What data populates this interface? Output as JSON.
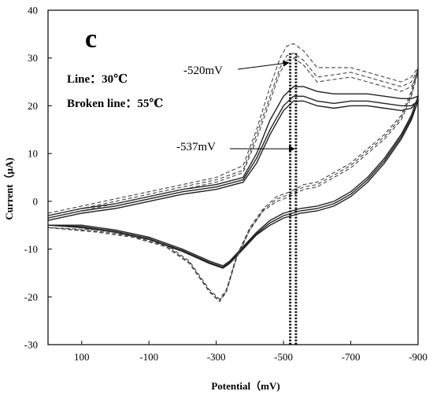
{
  "chart_data": {
    "type": "line",
    "panel_label": "c",
    "xlabel": "Potential（mV)",
    "ylabel": "Current（μA)",
    "xlim": [
      200,
      -900
    ],
    "ylim": [
      -30,
      40
    ],
    "x_ticks": [
      100,
      -100,
      -300,
      -500,
      -700,
      -900
    ],
    "x_tick_labels": [
      "100",
      "-100",
      "-300",
      "-500",
      "-700",
      "-900"
    ],
    "y_ticks": [
      -30,
      -20,
      -10,
      0,
      10,
      20,
      30,
      40
    ],
    "y_tick_labels": [
      "-30",
      "-20",
      "-10",
      "0",
      "10",
      "20",
      "30",
      "40"
    ],
    "grid": false,
    "legend": [
      {
        "text": "Line：30℃",
        "style": "solid"
      },
      {
        "text": "Broken line：55℃",
        "style": "dashed"
      }
    ],
    "annotations": [
      {
        "text": "-520mV",
        "x": -520,
        "y": 29
      },
      {
        "text": "-537mV",
        "x": -537,
        "y": 11
      }
    ],
    "vlines": [
      {
        "x": -520,
        "style": "dotted"
      },
      {
        "x": -537,
        "style": "dotted"
      }
    ],
    "series": [
      {
        "style": "solid",
        "forward": [
          [
            200,
            -4
          ],
          [
            100,
            -2.5
          ],
          [
            0,
            -1.5
          ],
          [
            -100,
            0
          ],
          [
            -200,
            1.5
          ],
          [
            -300,
            2.5
          ],
          [
            -380,
            4
          ],
          [
            -420,
            8
          ],
          [
            -460,
            14
          ],
          [
            -500,
            19
          ],
          [
            -530,
            21
          ],
          [
            -560,
            21
          ],
          [
            -600,
            20
          ],
          [
            -650,
            19.5
          ],
          [
            -700,
            20
          ],
          [
            -750,
            20
          ],
          [
            -800,
            19.5
          ],
          [
            -850,
            19
          ],
          [
            -880,
            19.5
          ],
          [
            -900,
            21
          ]
        ],
        "reverse": [
          [
            -900,
            21
          ],
          [
            -880,
            17
          ],
          [
            -850,
            13
          ],
          [
            -800,
            8
          ],
          [
            -750,
            4
          ],
          [
            -700,
            1
          ],
          [
            -650,
            -1
          ],
          [
            -600,
            -2
          ],
          [
            -550,
            -2.5
          ],
          [
            -500,
            -3.5
          ],
          [
            -460,
            -5
          ],
          [
            -420,
            -7
          ],
          [
            -380,
            -10
          ],
          [
            -340,
            -13
          ],
          [
            -320,
            -14
          ],
          [
            -280,
            -13
          ],
          [
            -200,
            -10.5
          ],
          [
            -100,
            -8
          ],
          [
            0,
            -6.5
          ],
          [
            100,
            -5.5
          ],
          [
            200,
            -5
          ]
        ]
      },
      {
        "style": "solid",
        "forward": [
          [
            200,
            -3.5
          ],
          [
            100,
            -2
          ],
          [
            0,
            -1
          ],
          [
            -100,
            0.5
          ],
          [
            -200,
            2
          ],
          [
            -300,
            3
          ],
          [
            -380,
            4.5
          ],
          [
            -420,
            9
          ],
          [
            -460,
            15
          ],
          [
            -500,
            20
          ],
          [
            -530,
            22
          ],
          [
            -560,
            22
          ],
          [
            -600,
            21
          ],
          [
            -650,
            20.5
          ],
          [
            -700,
            21
          ],
          [
            -750,
            21
          ],
          [
            -800,
            20.5
          ],
          [
            -850,
            20
          ],
          [
            -880,
            20
          ],
          [
            -900,
            21
          ]
        ],
        "reverse": [
          [
            -900,
            21
          ],
          [
            -880,
            17.5
          ],
          [
            -850,
            13.5
          ],
          [
            -800,
            8.5
          ],
          [
            -750,
            4.5
          ],
          [
            -700,
            1.5
          ],
          [
            -650,
            -0.5
          ],
          [
            -600,
            -1.5
          ],
          [
            -550,
            -2
          ],
          [
            -500,
            -3
          ],
          [
            -460,
            -4.5
          ],
          [
            -420,
            -6.8
          ],
          [
            -380,
            -9.8
          ],
          [
            -340,
            -12.8
          ],
          [
            -320,
            -13.8
          ],
          [
            -280,
            -12.8
          ],
          [
            -200,
            -10.3
          ],
          [
            -100,
            -7.8
          ],
          [
            0,
            -6.3
          ],
          [
            100,
            -5.3
          ],
          [
            200,
            -5
          ]
        ]
      },
      {
        "style": "solid",
        "forward": [
          [
            200,
            -3
          ],
          [
            100,
            -1.5
          ],
          [
            0,
            -0.5
          ],
          [
            -100,
            1
          ],
          [
            -200,
            2.5
          ],
          [
            -300,
            3.5
          ],
          [
            -380,
            5
          ],
          [
            -420,
            10
          ],
          [
            -460,
            17
          ],
          [
            -500,
            22
          ],
          [
            -530,
            24
          ],
          [
            -560,
            24
          ],
          [
            -600,
            23
          ],
          [
            -650,
            22.5
          ],
          [
            -700,
            22.5
          ],
          [
            -750,
            22.5
          ],
          [
            -800,
            22
          ],
          [
            -850,
            21.5
          ],
          [
            -880,
            21.5
          ],
          [
            -900,
            22
          ]
        ],
        "reverse": [
          [
            -900,
            22
          ],
          [
            -880,
            18
          ],
          [
            -850,
            14
          ],
          [
            -800,
            9
          ],
          [
            -750,
            5
          ],
          [
            -700,
            2
          ],
          [
            -650,
            0
          ],
          [
            -600,
            -1
          ],
          [
            -550,
            -1.5
          ],
          [
            -500,
            -2.5
          ],
          [
            -460,
            -4
          ],
          [
            -420,
            -6.5
          ],
          [
            -380,
            -9.5
          ],
          [
            -340,
            -12.5
          ],
          [
            -320,
            -13.5
          ],
          [
            -280,
            -12.5
          ],
          [
            -200,
            -10
          ],
          [
            -100,
            -7.5
          ],
          [
            0,
            -6
          ],
          [
            100,
            -5
          ],
          [
            200,
            -5
          ]
        ]
      },
      {
        "style": "dashed",
        "forward": [
          [
            200,
            -3.5
          ],
          [
            100,
            -2
          ],
          [
            0,
            -0.5
          ],
          [
            -100,
            1
          ],
          [
            -200,
            2.5
          ],
          [
            -300,
            4
          ],
          [
            -380,
            6
          ],
          [
            -420,
            13
          ],
          [
            -460,
            21
          ],
          [
            -490,
            27
          ],
          [
            -510,
            29.5
          ],
          [
            -530,
            30
          ],
          [
            -560,
            28.5
          ],
          [
            -600,
            25
          ],
          [
            -650,
            25.5
          ],
          [
            -700,
            26
          ],
          [
            -750,
            25
          ],
          [
            -800,
            24
          ],
          [
            -850,
            23
          ],
          [
            -880,
            24
          ],
          [
            -900,
            27
          ]
        ],
        "reverse": [
          [
            -900,
            27
          ],
          [
            -880,
            22
          ],
          [
            -850,
            17
          ],
          [
            -800,
            13
          ],
          [
            -750,
            10
          ],
          [
            -700,
            7
          ],
          [
            -650,
            5
          ],
          [
            -600,
            3
          ],
          [
            -560,
            2.5
          ],
          [
            -520,
            1
          ],
          [
            -480,
            0
          ],
          [
            -440,
            -2
          ],
          [
            -400,
            -6
          ],
          [
            -360,
            -12
          ],
          [
            -330,
            -19
          ],
          [
            -310,
            -21
          ],
          [
            -280,
            -19
          ],
          [
            -220,
            -13
          ],
          [
            -150,
            -9.5
          ],
          [
            -50,
            -7.5
          ],
          [
            50,
            -6.5
          ],
          [
            200,
            -5.5
          ]
        ]
      },
      {
        "style": "dashed",
        "forward": [
          [
            200,
            -3
          ],
          [
            100,
            -1.5
          ],
          [
            0,
            0
          ],
          [
            -100,
            1.5
          ],
          [
            -200,
            3
          ],
          [
            -300,
            4.5
          ],
          [
            -380,
            6.5
          ],
          [
            -420,
            14
          ],
          [
            -460,
            22
          ],
          [
            -490,
            28
          ],
          [
            -510,
            30.5
          ],
          [
            -530,
            31
          ],
          [
            -560,
            29.5
          ],
          [
            -600,
            26
          ],
          [
            -650,
            26.5
          ],
          [
            -700,
            27
          ],
          [
            -750,
            26
          ],
          [
            -800,
            25
          ],
          [
            -850,
            24
          ],
          [
            -880,
            25
          ],
          [
            -900,
            27.5
          ]
        ],
        "reverse": [
          [
            -900,
            27.5
          ],
          [
            -880,
            22.5
          ],
          [
            -850,
            17.5
          ],
          [
            -800,
            13.5
          ],
          [
            -750,
            10.5
          ],
          [
            -700,
            7.5
          ],
          [
            -650,
            5.5
          ],
          [
            -600,
            3.5
          ],
          [
            -560,
            3
          ],
          [
            -520,
            1.5
          ],
          [
            -480,
            0.5
          ],
          [
            -440,
            -1.8
          ],
          [
            -400,
            -5.8
          ],
          [
            -360,
            -11.8
          ],
          [
            -330,
            -18.8
          ],
          [
            -310,
            -20.8
          ],
          [
            -280,
            -18.8
          ],
          [
            -220,
            -12.8
          ],
          [
            -150,
            -9.3
          ],
          [
            -50,
            -7.3
          ],
          [
            50,
            -6.3
          ],
          [
            200,
            -5.5
          ]
        ]
      },
      {
        "style": "dashed",
        "forward": [
          [
            200,
            -2.5
          ],
          [
            100,
            -1
          ],
          [
            0,
            0.5
          ],
          [
            -100,
            2
          ],
          [
            -200,
            3.5
          ],
          [
            -300,
            5
          ],
          [
            -380,
            7.5
          ],
          [
            -420,
            15
          ],
          [
            -460,
            24
          ],
          [
            -490,
            30
          ],
          [
            -510,
            32.5
          ],
          [
            -530,
            33
          ],
          [
            -560,
            31.5
          ],
          [
            -600,
            28
          ],
          [
            -650,
            28
          ],
          [
            -700,
            28
          ],
          [
            -750,
            27
          ],
          [
            -800,
            26
          ],
          [
            -850,
            25
          ],
          [
            -880,
            26
          ],
          [
            -900,
            28
          ]
        ],
        "reverse": [
          [
            -900,
            28
          ],
          [
            -880,
            23
          ],
          [
            -850,
            18
          ],
          [
            -800,
            14
          ],
          [
            -750,
            11
          ],
          [
            -700,
            8
          ],
          [
            -650,
            6
          ],
          [
            -600,
            4
          ],
          [
            -560,
            3.5
          ],
          [
            -520,
            2
          ],
          [
            -480,
            1
          ],
          [
            -440,
            -1.5
          ],
          [
            -400,
            -5.5
          ],
          [
            -360,
            -11.5
          ],
          [
            -330,
            -18.5
          ],
          [
            -310,
            -20.5
          ],
          [
            -280,
            -18.5
          ],
          [
            -220,
            -12.5
          ],
          [
            -150,
            -9
          ],
          [
            -50,
            -7
          ],
          [
            50,
            -6
          ],
          [
            200,
            -5.5
          ]
        ]
      }
    ]
  }
}
